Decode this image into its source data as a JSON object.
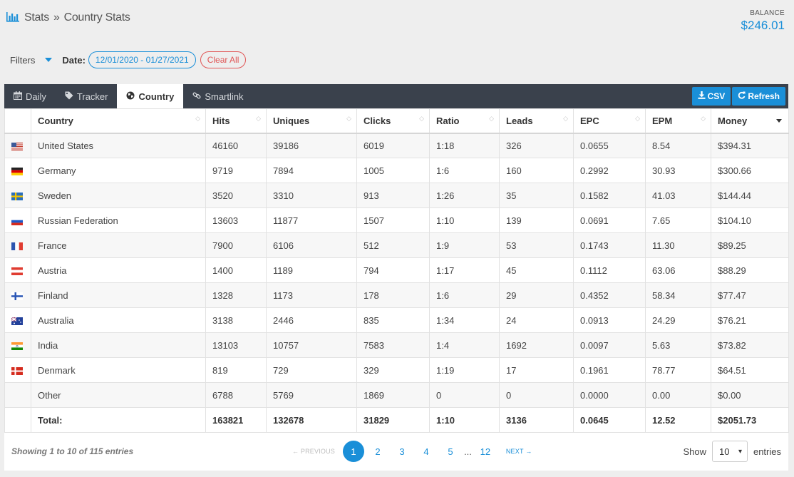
{
  "header": {
    "breadcrumb_root": "Stats",
    "breadcrumb_sep": "»",
    "breadcrumb_current": "Country Stats",
    "balance_label": "BALANCE",
    "balance_value": "$246.01"
  },
  "filters": {
    "label": "Filters",
    "date_label": "Date:",
    "date_range": "12/01/2020 - 01/27/2021",
    "clear_label": "Clear All"
  },
  "tabs": [
    {
      "label": "Daily",
      "icon": "calendar-icon"
    },
    {
      "label": "Tracker",
      "icon": "tag-icon"
    },
    {
      "label": "Country",
      "icon": "globe-icon",
      "active": true
    },
    {
      "label": "Smartlink",
      "icon": "link-icon"
    }
  ],
  "actions": {
    "csv_label": "CSV",
    "refresh_label": "Refresh"
  },
  "colors": {
    "accent": "#1a8fd8",
    "tabbar": "#3a414c",
    "danger": "#e05555"
  },
  "table": {
    "columns": [
      "Country",
      "Hits",
      "Uniques",
      "Clicks",
      "Ratio",
      "Leads",
      "EPC",
      "EPM",
      "Money"
    ],
    "sorted_column": "Money",
    "rows": [
      {
        "flag": "us",
        "country": "United States",
        "hits": "46160",
        "uniques": "39186",
        "clicks": "6019",
        "ratio": "1:18",
        "leads": "326",
        "epc": "0.0655",
        "epm": "8.54",
        "money": "$394.31"
      },
      {
        "flag": "de",
        "country": "Germany",
        "hits": "9719",
        "uniques": "7894",
        "clicks": "1005",
        "ratio": "1:6",
        "leads": "160",
        "epc": "0.2992",
        "epm": "30.93",
        "money": "$300.66"
      },
      {
        "flag": "se",
        "country": "Sweden",
        "hits": "3520",
        "uniques": "3310",
        "clicks": "913",
        "ratio": "1:26",
        "leads": "35",
        "epc": "0.1582",
        "epm": "41.03",
        "money": "$144.44"
      },
      {
        "flag": "ru",
        "country": "Russian Federation",
        "hits": "13603",
        "uniques": "11877",
        "clicks": "1507",
        "ratio": "1:10",
        "leads": "139",
        "epc": "0.0691",
        "epm": "7.65",
        "money": "$104.10"
      },
      {
        "flag": "fr",
        "country": "France",
        "hits": "7900",
        "uniques": "6106",
        "clicks": "512",
        "ratio": "1:9",
        "leads": "53",
        "epc": "0.1743",
        "epm": "11.30",
        "money": "$89.25"
      },
      {
        "flag": "at",
        "country": "Austria",
        "hits": "1400",
        "uniques": "1189",
        "clicks": "794",
        "ratio": "1:17",
        "leads": "45",
        "epc": "0.1112",
        "epm": "63.06",
        "money": "$88.29"
      },
      {
        "flag": "fi",
        "country": "Finland",
        "hits": "1328",
        "uniques": "1173",
        "clicks": "178",
        "ratio": "1:6",
        "leads": "29",
        "epc": "0.4352",
        "epm": "58.34",
        "money": "$77.47"
      },
      {
        "flag": "au",
        "country": "Australia",
        "hits": "3138",
        "uniques": "2446",
        "clicks": "835",
        "ratio": "1:34",
        "leads": "24",
        "epc": "0.0913",
        "epm": "24.29",
        "money": "$76.21"
      },
      {
        "flag": "in",
        "country": "India",
        "hits": "13103",
        "uniques": "10757",
        "clicks": "7583",
        "ratio": "1:4",
        "leads": "1692",
        "epc": "0.0097",
        "epm": "5.63",
        "money": "$73.82"
      },
      {
        "flag": "dk",
        "country": "Denmark",
        "hits": "819",
        "uniques": "729",
        "clicks": "329",
        "ratio": "1:19",
        "leads": "17",
        "epc": "0.1961",
        "epm": "78.77",
        "money": "$64.51"
      },
      {
        "flag": "",
        "country": "Other",
        "hits": "6788",
        "uniques": "5769",
        "clicks": "1869",
        "ratio": "0",
        "leads": "0",
        "epc": "0.0000",
        "epm": "0.00",
        "money": "$0.00"
      }
    ],
    "total": {
      "country": "Total:",
      "hits": "163821",
      "uniques": "132678",
      "clicks": "31829",
      "ratio": "1:10",
      "leads": "3136",
      "epc": "0.0645",
      "epm": "12.52",
      "money": "$2051.73"
    }
  },
  "footer": {
    "showing": "Showing 1 to 10 of 115 entries",
    "prev_label": "← PREVIOUS",
    "next_label": "NEXT →",
    "pages": [
      "1",
      "2",
      "3",
      "4",
      "5"
    ],
    "ellipsis": "...",
    "last_page": "12",
    "current_page": "1",
    "show_label": "Show",
    "page_size": "10",
    "entries_label": "entries"
  }
}
